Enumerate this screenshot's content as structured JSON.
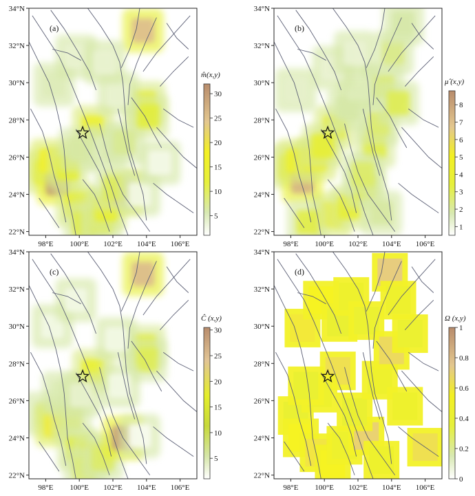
{
  "figure": {
    "background": "#ffffff"
  },
  "chart_data": [
    {
      "type": "heatmap",
      "panel_label": "(a)",
      "colorbar_label": "m̂(x,y)",
      "colorbar_ticks": [
        5,
        10,
        15,
        20,
        25,
        30
      ],
      "colorbar_range": [
        1,
        32
      ],
      "x_ticks": [
        "98°E",
        "100°E",
        "102°E",
        "104°E",
        "106°E"
      ],
      "y_ticks": [
        "22°N",
        "24°N",
        "26°N",
        "28°N",
        "30°N",
        "32°N",
        "34°N"
      ],
      "star": {
        "lon": 100.2,
        "lat": 27.3
      },
      "cells": [
        {
          "lon": 98.0,
          "lat": 25.2,
          "v": 14
        },
        {
          "lon": 98.7,
          "lat": 24.6,
          "v": 30
        },
        {
          "lon": 98.3,
          "lat": 25.8,
          "v": 17
        },
        {
          "lon": 99.3,
          "lat": 25.4,
          "v": 12
        },
        {
          "lon": 99.8,
          "lat": 23.4,
          "v": 13
        },
        {
          "lon": 100.8,
          "lat": 23.0,
          "v": 18
        },
        {
          "lon": 100.3,
          "lat": 22.4,
          "v": 10
        },
        {
          "lon": 101.3,
          "lat": 22.6,
          "v": 9
        },
        {
          "lon": 101.6,
          "lat": 23.2,
          "v": 13
        },
        {
          "lon": 102.6,
          "lat": 24.1,
          "v": 27
        },
        {
          "lon": 102.1,
          "lat": 24.3,
          "v": 9
        },
        {
          "lon": 100.8,
          "lat": 27.6,
          "v": 15
        },
        {
          "lon": 100.0,
          "lat": 26.4,
          "v": 5
        },
        {
          "lon": 101.6,
          "lat": 26.5,
          "v": 4
        },
        {
          "lon": 102.7,
          "lat": 26.8,
          "v": 6
        },
        {
          "lon": 103.9,
          "lat": 28.9,
          "v": 13
        },
        {
          "lon": 104.1,
          "lat": 28.2,
          "v": 11
        },
        {
          "lon": 103.8,
          "lat": 32.8,
          "v": 26
        },
        {
          "lon": 98.5,
          "lat": 29.9,
          "v": 4
        },
        {
          "lon": 102.3,
          "lat": 29.4,
          "v": 3
        },
        {
          "lon": 99.8,
          "lat": 31.4,
          "v": 3
        },
        {
          "lon": 101.5,
          "lat": 31.1,
          "v": 3
        },
        {
          "lon": 103.6,
          "lat": 24.0,
          "v": 2
        },
        {
          "lon": 104.8,
          "lat": 25.7,
          "v": 2
        }
      ]
    },
    {
      "type": "heatmap",
      "panel_label": "(b)",
      "colorbar_label": "μ̂ (x,y)",
      "colorbar_ticks": [
        1,
        2,
        3,
        4,
        5,
        6,
        7,
        8
      ],
      "colorbar_range": [
        0.5,
        8.8
      ],
      "x_ticks": [
        "98°E",
        "100°E",
        "102°E",
        "104°E",
        "106°E"
      ],
      "y_ticks": [
        "22°N",
        "24°N",
        "26°N",
        "28°N",
        "30°N",
        "32°N",
        "34°N"
      ],
      "star": {
        "lon": 100.2,
        "lat": 27.3
      },
      "cells": [
        {
          "lon": 98.0,
          "lat": 25.5,
          "v": 3.5
        },
        {
          "lon": 98.7,
          "lat": 24.7,
          "v": 7.5
        },
        {
          "lon": 98.4,
          "lat": 25.8,
          "v": 4.2
        },
        {
          "lon": 99.5,
          "lat": 25.9,
          "v": 4.2
        },
        {
          "lon": 100.6,
          "lat": 27.6,
          "v": 3.8
        },
        {
          "lon": 99.9,
          "lat": 26.6,
          "v": 3.6
        },
        {
          "lon": 100.4,
          "lat": 22.9,
          "v": 4.4
        },
        {
          "lon": 101.5,
          "lat": 23.3,
          "v": 3.6
        },
        {
          "lon": 99.0,
          "lat": 22.5,
          "v": 3.0
        },
        {
          "lon": 102.4,
          "lat": 24.4,
          "v": 3.1
        },
        {
          "lon": 103.0,
          "lat": 26.6,
          "v": 3.2
        },
        {
          "lon": 102.3,
          "lat": 25.1,
          "v": 2.5
        },
        {
          "lon": 103.2,
          "lat": 27.8,
          "v": 2.4
        },
        {
          "lon": 103.5,
          "lat": 29.8,
          "v": 2.3
        },
        {
          "lon": 104.4,
          "lat": 28.9,
          "v": 2.8
        },
        {
          "lon": 104.1,
          "lat": 31.6,
          "v": 2.0
        },
        {
          "lon": 104.7,
          "lat": 33.2,
          "v": 1.5
        },
        {
          "lon": 101.4,
          "lat": 28.6,
          "v": 1.5
        },
        {
          "lon": 102.0,
          "lat": 29.7,
          "v": 1.3
        },
        {
          "lon": 100.5,
          "lat": 30.8,
          "v": 1.0
        },
        {
          "lon": 98.3,
          "lat": 29.6,
          "v": 1.1
        },
        {
          "lon": 103.4,
          "lat": 23.0,
          "v": 1.6
        },
        {
          "lon": 101.8,
          "lat": 31.6,
          "v": 1.0
        }
      ]
    },
    {
      "type": "heatmap",
      "panel_label": "(c)",
      "colorbar_label": "Ĉ (x,y)",
      "colorbar_ticks": [
        5,
        10,
        15,
        20,
        25,
        30
      ],
      "colorbar_range": [
        1,
        30.5
      ],
      "x_ticks": [
        "98°E",
        "100°E",
        "102°E",
        "104°E",
        "106°E"
      ],
      "y_ticks": [
        "22°N",
        "24°N",
        "26°N",
        "28°N",
        "30°N",
        "32°N",
        "34°N"
      ],
      "star": {
        "lon": 100.2,
        "lat": 27.3
      },
      "cells": [
        {
          "lon": 98.0,
          "lat": 25.3,
          "v": 4
        },
        {
          "lon": 98.6,
          "lat": 24.7,
          "v": 18
        },
        {
          "lon": 99.0,
          "lat": 26.4,
          "v": 4
        },
        {
          "lon": 99.5,
          "lat": 25.0,
          "v": 6
        },
        {
          "lon": 99.9,
          "lat": 23.4,
          "v": 10
        },
        {
          "lon": 100.8,
          "lat": 23.1,
          "v": 11
        },
        {
          "lon": 100.3,
          "lat": 22.3,
          "v": 7
        },
        {
          "lon": 101.4,
          "lat": 22.9,
          "v": 8
        },
        {
          "lon": 102.6,
          "lat": 24.0,
          "v": 28
        },
        {
          "lon": 100.8,
          "lat": 27.6,
          "v": 13
        },
        {
          "lon": 100.1,
          "lat": 26.3,
          "v": 3
        },
        {
          "lon": 103.9,
          "lat": 28.9,
          "v": 11
        },
        {
          "lon": 104.0,
          "lat": 28.2,
          "v": 9
        },
        {
          "lon": 103.8,
          "lat": 32.8,
          "v": 25
        },
        {
          "lon": 98.4,
          "lat": 30.0,
          "v": 2
        },
        {
          "lon": 99.8,
          "lat": 31.4,
          "v": 2
        },
        {
          "lon": 102.2,
          "lat": 29.3,
          "v": 2
        },
        {
          "lon": 102.4,
          "lat": 26.8,
          "v": 2
        },
        {
          "lon": 103.6,
          "lat": 24.1,
          "v": 1.5
        }
      ]
    },
    {
      "type": "heatmap",
      "panel_label": "(d)",
      "colorbar_label": "Ω (x,y)",
      "colorbar_ticks": [
        0,
        0.2,
        0.4,
        0.6,
        0.8,
        1
      ],
      "colorbar_range": [
        0,
        1
      ],
      "x_ticks": [
        "98°E",
        "100°E",
        "102°E",
        "104°E",
        "106°E"
      ],
      "y_ticks": [
        "22°N",
        "24°N",
        "26°N",
        "28°N",
        "30°N",
        "32°N",
        "34°N"
      ],
      "star": {
        "lon": 100.2,
        "lat": 27.3
      },
      "cells": [
        {
          "lon": 98.3,
          "lat": 25.2,
          "v": 0.4
        },
        {
          "lon": 98.6,
          "lat": 24.0,
          "v": 0.55
        },
        {
          "lon": 99.6,
          "lat": 23.2,
          "v": 0.62
        },
        {
          "lon": 100.5,
          "lat": 22.6,
          "v": 0.55
        },
        {
          "lon": 101.2,
          "lat": 23.6,
          "v": 0.45
        },
        {
          "lon": 102.5,
          "lat": 24.1,
          "v": 0.72
        },
        {
          "lon": 101.8,
          "lat": 25.4,
          "v": 0.4
        },
        {
          "lon": 100.8,
          "lat": 27.6,
          "v": 0.65
        },
        {
          "lon": 99.7,
          "lat": 26.4,
          "v": 0.45
        },
        {
          "lon": 98.9,
          "lat": 26.8,
          "v": 0.4
        },
        {
          "lon": 98.7,
          "lat": 29.9,
          "v": 0.6
        },
        {
          "lon": 99.8,
          "lat": 31.4,
          "v": 0.55
        },
        {
          "lon": 100.9,
          "lat": 30.2,
          "v": 0.4
        },
        {
          "lon": 101.6,
          "lat": 31.6,
          "v": 0.45
        },
        {
          "lon": 102.5,
          "lat": 30.3,
          "v": 0.42
        },
        {
          "lon": 103.3,
          "lat": 27.1,
          "v": 0.45
        },
        {
          "lon": 104.0,
          "lat": 28.7,
          "v": 0.68
        },
        {
          "lon": 105.1,
          "lat": 29.6,
          "v": 0.42
        },
        {
          "lon": 103.9,
          "lat": 32.9,
          "v": 0.75
        },
        {
          "lon": 104.4,
          "lat": 31.4,
          "v": 0.45
        },
        {
          "lon": 104.8,
          "lat": 25.7,
          "v": 0.45
        },
        {
          "lon": 103.4,
          "lat": 22.8,
          "v": 0.45
        },
        {
          "lon": 106.0,
          "lat": 23.5,
          "v": 0.65
        }
      ]
    }
  ]
}
